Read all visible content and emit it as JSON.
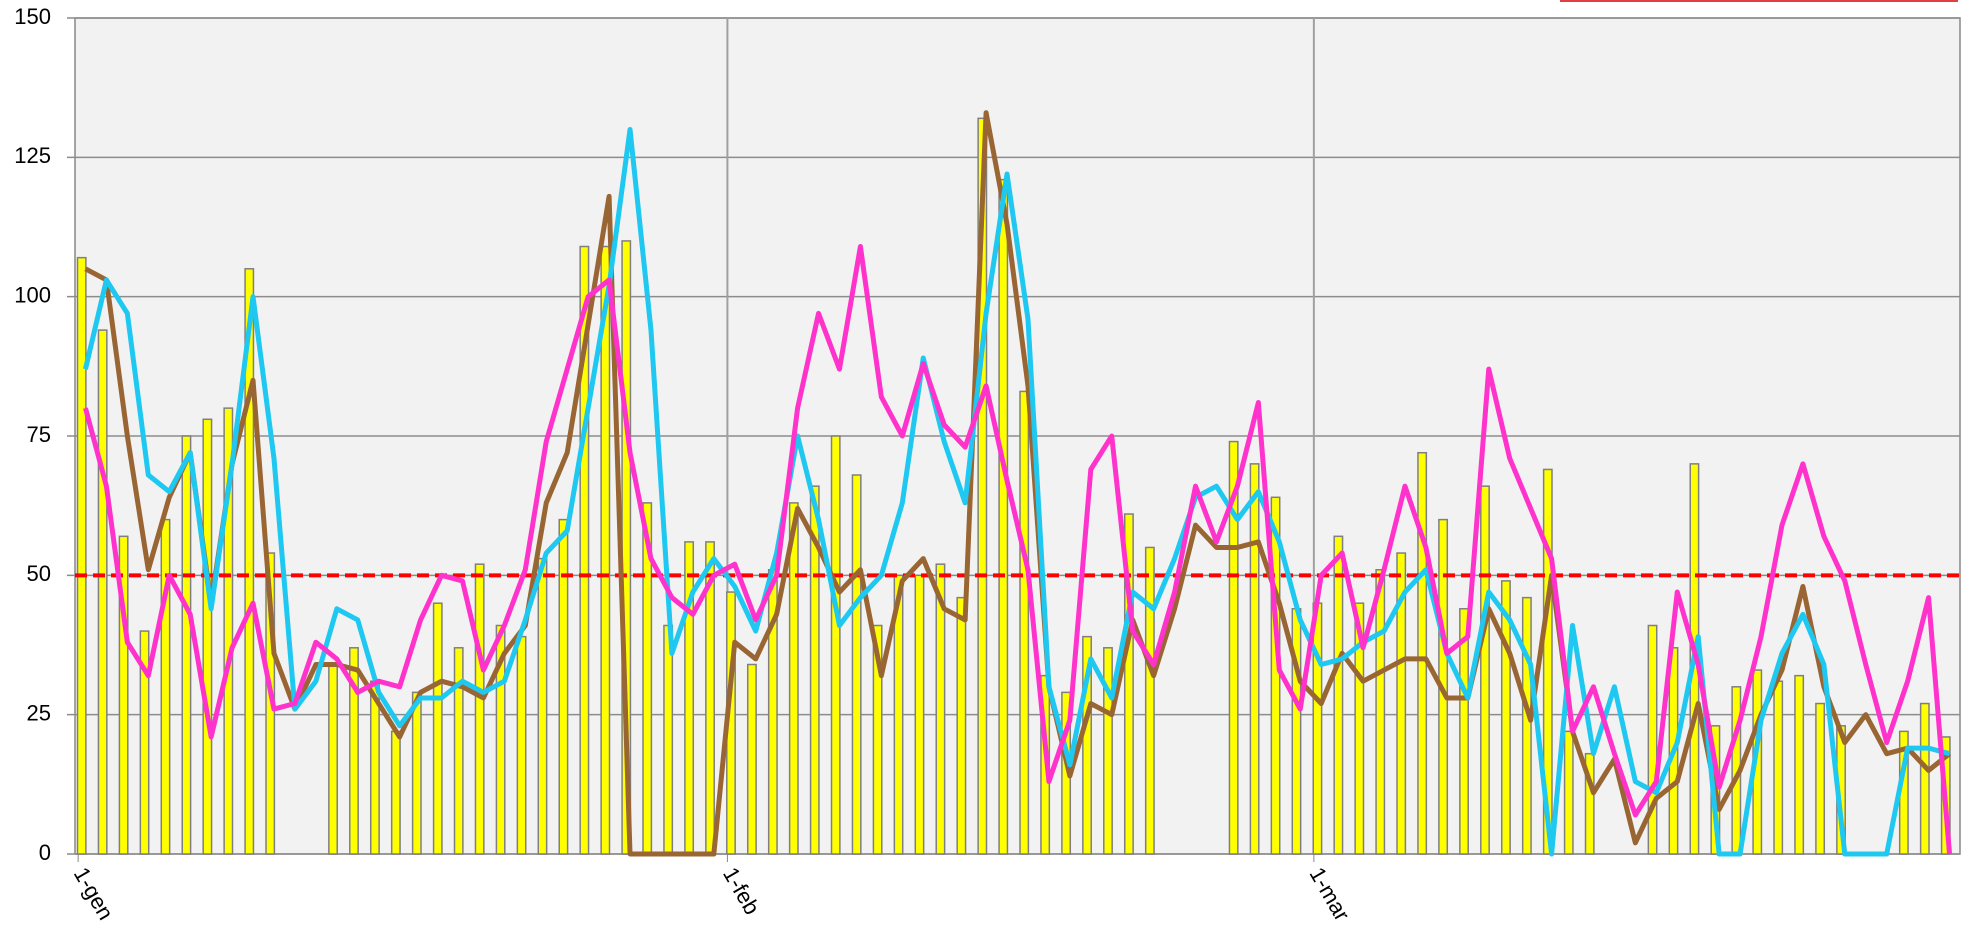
{
  "chart_data": {
    "type": "bar",
    "categories": [
      "1-gen",
      null,
      null,
      null,
      null,
      null,
      null,
      null,
      null,
      null,
      null,
      null,
      null,
      null,
      null,
      null,
      null,
      null,
      null,
      null,
      null,
      null,
      null,
      null,
      null,
      null,
      null,
      null,
      null,
      null,
      null,
      "1-feb",
      null,
      null,
      null,
      null,
      null,
      null,
      null,
      null,
      null,
      null,
      null,
      null,
      null,
      null,
      null,
      null,
      null,
      null,
      null,
      null,
      null,
      null,
      null,
      null,
      null,
      null,
      null,
      "1-mar",
      null,
      null,
      null,
      null,
      null,
      null,
      null,
      null,
      null,
      null,
      null,
      null,
      null,
      null,
      null,
      null,
      null,
      null,
      null,
      null,
      null,
      null,
      null,
      null,
      null,
      null,
      null,
      null,
      null,
      null
    ],
    "series": [
      {
        "type": "bar",
        "color": "#ffff00",
        "values": [
          107,
          94,
          57,
          40,
          60,
          75,
          78,
          80,
          105,
          54,
          null,
          null,
          34,
          37,
          31,
          22,
          29,
          45,
          37,
          52,
          41,
          39,
          53,
          60,
          109,
          109,
          110,
          63,
          41,
          56,
          56,
          47,
          34,
          51,
          63,
          66,
          75,
          68,
          41,
          50,
          50,
          52,
          46,
          132,
          121,
          83,
          32,
          29,
          39,
          37,
          61,
          55,
          null,
          null,
          null,
          74,
          70,
          64,
          44,
          45,
          57,
          45,
          51,
          54,
          72,
          60,
          44,
          66,
          49,
          46,
          69,
          22,
          18,
          null,
          null,
          41,
          37,
          70,
          23,
          30,
          33,
          31,
          32,
          27,
          23,
          null,
          null,
          22,
          27,
          21
        ]
      },
      {
        "type": "line",
        "color": "#996633",
        "values": [
          105,
          103,
          75,
          51,
          64,
          72,
          45,
          70,
          85,
          36,
          26,
          34,
          34,
          33,
          27,
          21,
          29,
          31,
          30,
          28,
          36,
          41,
          63,
          72,
          95,
          118,
          0,
          0,
          0,
          0,
          0,
          38,
          35,
          43,
          62,
          55,
          47,
          51,
          32,
          49,
          53,
          44,
          42,
          133,
          113,
          84,
          30,
          14,
          27,
          25,
          42,
          32,
          44,
          59,
          55,
          55,
          56,
          45,
          31,
          27,
          36,
          31,
          33,
          35,
          35,
          28,
          28,
          44,
          36,
          24,
          50,
          22,
          11,
          17,
          2,
          10,
          13,
          27,
          8,
          15,
          25,
          33,
          48,
          30,
          20,
          25,
          18,
          19,
          15,
          18
        ]
      },
      {
        "type": "line",
        "color": "#1ec8f0",
        "values": [
          87,
          103,
          97,
          68,
          65,
          72,
          44,
          70,
          100,
          71,
          26,
          31,
          44,
          42,
          29,
          23,
          28,
          28,
          31,
          29,
          31,
          42,
          54,
          58,
          80,
          102,
          130,
          94,
          36,
          47,
          53,
          48,
          40,
          54,
          75,
          60,
          41,
          46,
          50,
          63,
          89,
          74,
          63,
          97,
          122,
          96,
          30,
          16,
          35,
          28,
          47,
          44,
          53,
          64,
          66,
          60,
          65,
          56,
          42,
          34,
          35,
          38,
          40,
          47,
          51,
          36,
          28,
          47,
          42,
          34,
          0,
          41,
          18,
          30,
          13,
          11,
          20,
          39,
          0,
          0,
          24,
          36,
          43,
          34,
          0,
          0,
          0,
          19,
          19,
          18
        ]
      },
      {
        "type": "line",
        "color": "#ff33cc",
        "values": [
          80,
          66,
          38,
          32,
          50,
          43,
          21,
          37,
          45,
          26,
          27,
          38,
          35,
          29,
          31,
          30,
          42,
          50,
          49,
          33,
          41,
          51,
          74,
          87,
          100,
          103,
          72,
          53,
          46,
          43,
          50,
          52,
          42,
          50,
          80,
          97,
          87,
          109,
          82,
          75,
          88,
          77,
          73,
          84,
          67,
          51,
          13,
          24,
          69,
          75,
          40,
          34,
          47,
          66,
          56,
          66,
          81,
          33,
          26,
          50,
          54,
          37,
          51,
          66,
          55,
          36,
          39,
          87,
          71,
          62,
          53,
          22,
          30,
          18,
          7,
          13,
          47,
          34,
          12,
          24,
          39,
          59,
          70,
          57,
          49,
          34,
          20,
          31,
          46,
          0
        ]
      }
    ],
    "reference_line": {
      "value": 50,
      "color": "#ff0000"
    },
    "ylim": [
      0,
      150
    ],
    "yticks": [
      0,
      25,
      50,
      75,
      100,
      125,
      150
    ],
    "grid": true
  }
}
